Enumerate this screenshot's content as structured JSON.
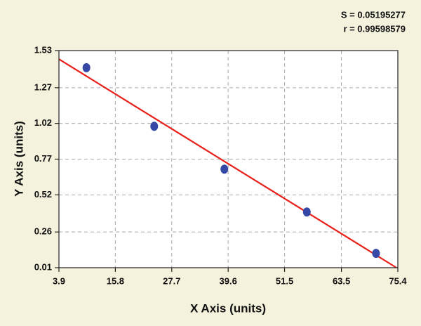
{
  "chart_data": {
    "type": "scatter",
    "annotations": [
      "S = 0.05195277",
      "r = 0.99598579"
    ],
    "x_label": "X Axis (units)",
    "y_label": "Y Axis (units)",
    "xlim": [
      3.9,
      75.4
    ],
    "ylim": [
      0.01,
      1.53
    ],
    "xticks": [
      3.9,
      15.8,
      27.7,
      39.6,
      51.5,
      63.5,
      75.4
    ],
    "yticks": [
      0.01,
      0.26,
      0.52,
      0.77,
      1.02,
      1.27,
      1.53
    ],
    "grid": true,
    "series": [
      {
        "type": "scatter",
        "color": "#3548a6",
        "x": [
          9.7,
          24.0,
          38.8,
          56.2,
          70.8
        ],
        "values": [
          1.41,
          1.0,
          0.7,
          0.4,
          0.11
        ]
      },
      {
        "type": "line",
        "color": "#e8201a",
        "x": [
          3.9,
          75.1
        ],
        "values": [
          1.47,
          0.01
        ]
      }
    ]
  }
}
